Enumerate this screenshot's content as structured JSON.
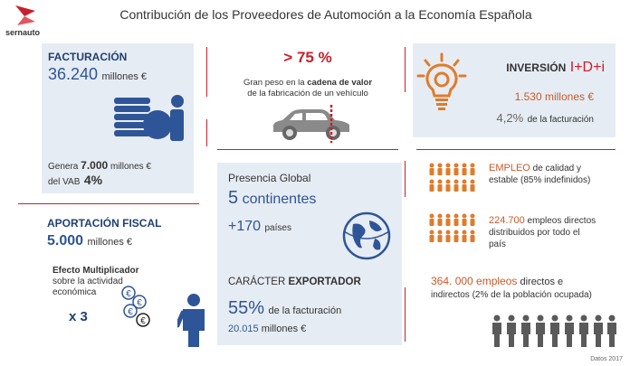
{
  "header": {
    "brand": "sernauto",
    "title": "Contribución de los Proveedores de Automoción a la Economía Española"
  },
  "facturacion": {
    "heading": "FACTURACIÓN",
    "amount": "36.240",
    "amount_unit": "millones €",
    "genera_prefix": "Genera",
    "genera_amount": "7.000",
    "genera_unit": "millones €",
    "vab_prefix": "del VAB",
    "vab_pct": "4%"
  },
  "cadena": {
    "pct": "> 75 %",
    "line1": "Gran peso en la",
    "line1_bold": "cadena de valor",
    "line2": "de la fabricación de un vehículo"
  },
  "inversion": {
    "heading": "INVERSIÓN",
    "heading_accent": "I+D+i",
    "amount": "1.530 millones €",
    "pct": "4,2%",
    "pct_suffix": "de la facturación"
  },
  "fiscal": {
    "heading": "APORTACIÓN FISCAL",
    "amount": "5.000",
    "amount_unit": "millones €",
    "efecto_title": "Efecto Multiplicador",
    "efecto_l2": "sobre la actividad",
    "efecto_l3": "económica",
    "multiplier": "x 3"
  },
  "global": {
    "heading": "Presencia Global",
    "continents": "5",
    "continents_label": "continentes",
    "countries": "+170",
    "countries_label": "países",
    "export_heading_a": "CARÁCTER",
    "export_heading_b": "EXPORTADOR",
    "export_pct": "55%",
    "export_pct_label": "de la facturación",
    "export_amount": "20.015",
    "export_unit": "millones €"
  },
  "empleo": {
    "quality_bold": "EMPLEO",
    "quality_l1": "de calidad y",
    "quality_l2": "estable (85% indefinidos)",
    "direct_amount": "224.700",
    "direct_l1": "empleos directos",
    "direct_l2": "distribuidos por todo el",
    "direct_l3": "país",
    "total_bold": "364. 000 empleos",
    "total_l1_rest": "directos e",
    "total_l2": "indirectos (2% de la población ocupada)"
  },
  "footer": {
    "source": "Datos 2017"
  },
  "colors": {
    "accent_red": "#c8202b",
    "brand_blue": "#2e5597",
    "orange": "#e07b2a",
    "panel": "#e6ecf4"
  }
}
